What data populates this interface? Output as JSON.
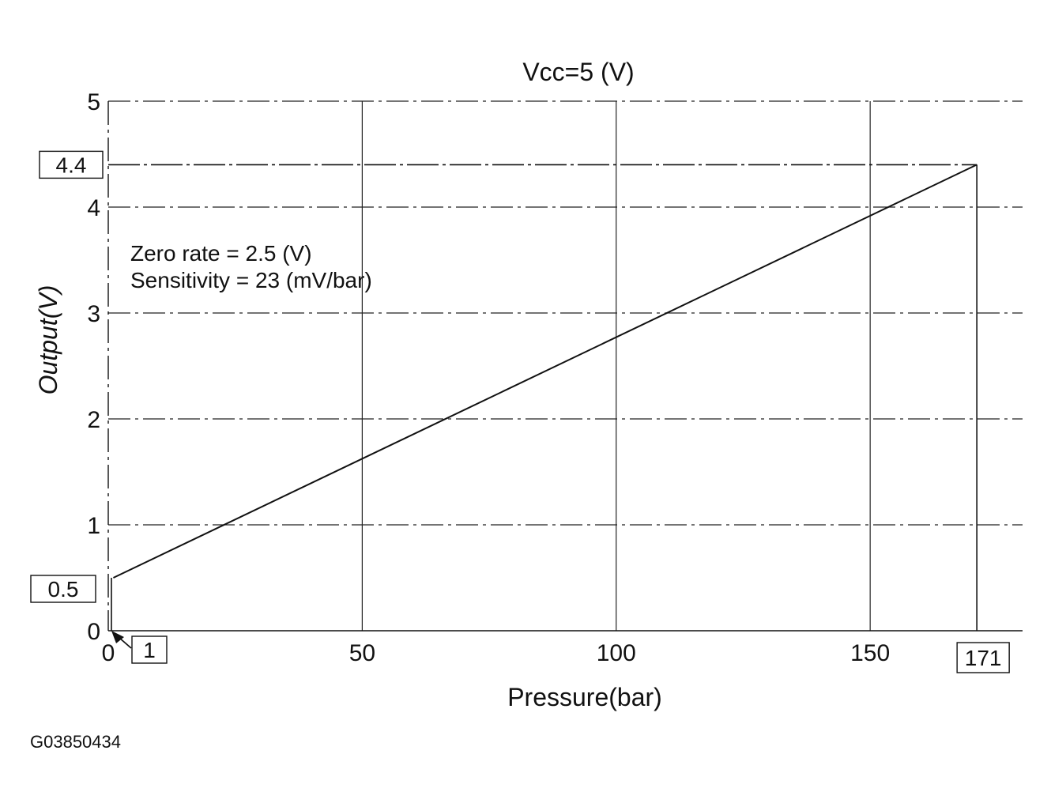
{
  "chart_data": {
    "type": "line",
    "title": "Vcc=5 (V)",
    "xlabel": "Pressure(bar)",
    "ylabel": "Output(V)",
    "xlim": [
      0,
      180
    ],
    "ylim": [
      0,
      5
    ],
    "xticks": [
      0,
      50,
      100,
      150
    ],
    "yticks": [
      0,
      1,
      2,
      3,
      4,
      5
    ],
    "grid": true,
    "series": [
      {
        "x": [
          1,
          171
        ],
        "y": [
          0.5,
          4.4
        ]
      }
    ],
    "annotations": {
      "zero_rate": "Zero  rate = 2.5 (V)",
      "sensitivity": "Sensitivity = 23 (mV/bar)"
    },
    "marked_values": {
      "y_low": {
        "label": "0.5",
        "value": 0.5
      },
      "y_high": {
        "label": "4.4",
        "value": 4.4
      },
      "x_low": {
        "label": "1",
        "value": 1
      },
      "x_high": {
        "label": "171",
        "value": 171
      }
    }
  },
  "figure_code": "G03850434"
}
